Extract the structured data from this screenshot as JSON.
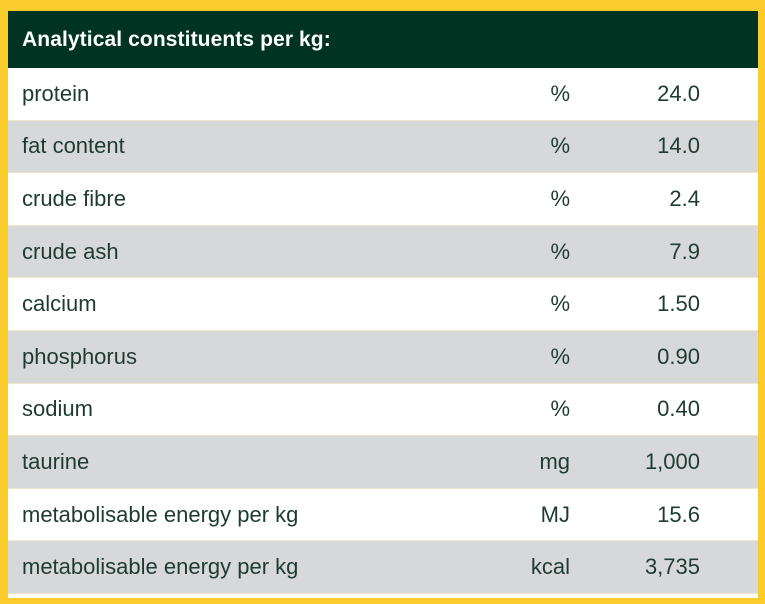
{
  "header": {
    "title": "Analytical constituents per kg:"
  },
  "rows": [
    {
      "name": "protein",
      "unit": "%",
      "value": "24.0"
    },
    {
      "name": "fat content",
      "unit": "%",
      "value": "14.0"
    },
    {
      "name": "crude fibre",
      "unit": "%",
      "value": "2.4"
    },
    {
      "name": "crude ash",
      "unit": "%",
      "value": "7.9"
    },
    {
      "name": "calcium",
      "unit": "%",
      "value": "1.50"
    },
    {
      "name": "phosphorus",
      "unit": "%",
      "value": "0.90"
    },
    {
      "name": "sodium",
      "unit": "%",
      "value": "0.40"
    },
    {
      "name": "taurine",
      "unit": "mg",
      "value": "1,000"
    },
    {
      "name": "metabolisable energy per kg",
      "unit": "MJ",
      "value": "15.6"
    },
    {
      "name": "metabolisable energy per kg",
      "unit": "kcal",
      "value": "3,735"
    }
  ],
  "colors": {
    "border": "#f9cc2c",
    "header_bg": "#003321",
    "header_text": "#ffffff",
    "alt_row": "#d7d8da",
    "text": "#1f3b2f"
  }
}
